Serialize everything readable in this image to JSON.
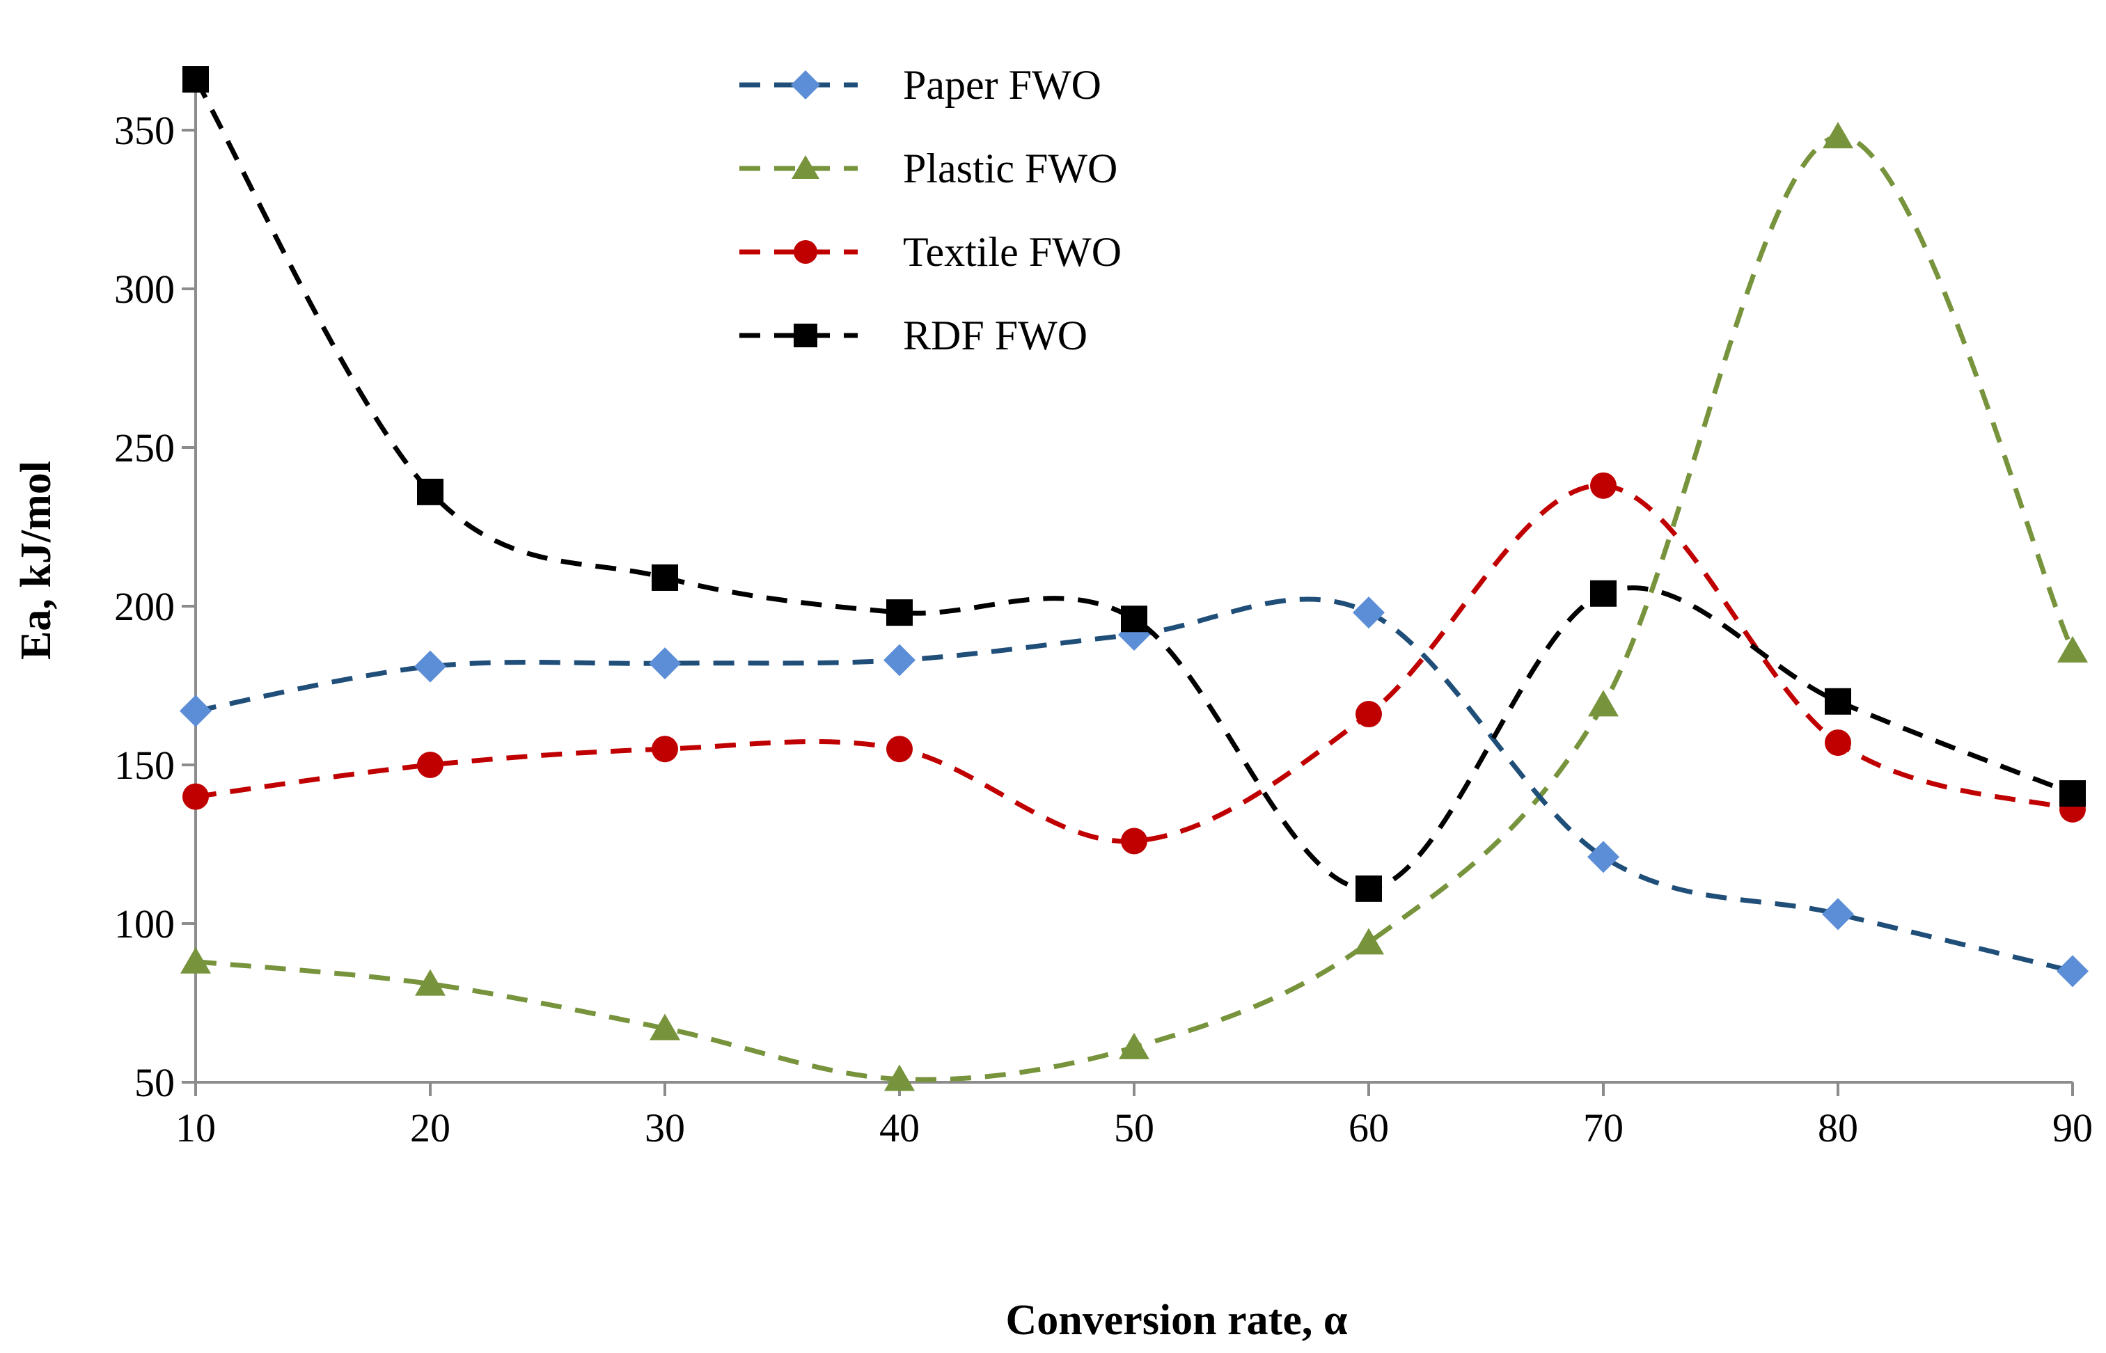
{
  "chart_data": {
    "type": "line",
    "title": "",
    "xlabel": "Conversion rate, α",
    "ylabel": "Ea, kJ/mol",
    "x": [
      10,
      20,
      30,
      40,
      50,
      60,
      70,
      80,
      90
    ],
    "xlim": [
      10,
      90
    ],
    "ylim": [
      50,
      370
    ],
    "xticks": [
      10,
      20,
      30,
      40,
      50,
      60,
      70,
      80,
      90
    ],
    "yticks": [
      50,
      100,
      150,
      200,
      250,
      300,
      350
    ],
    "grid": false,
    "legend_position": "top-center",
    "series": [
      {
        "name": "Paper FWO",
        "marker": "diamond",
        "color": "#1F4E79",
        "marker_color": "#5B8ED6",
        "values": [
          167,
          181,
          182,
          183,
          191,
          198,
          121,
          103,
          85
        ]
      },
      {
        "name": "Plastic FWO",
        "marker": "triangle",
        "color": "#77933C",
        "marker_color": "#77933C",
        "values": [
          88,
          81,
          67,
          51,
          61,
          94,
          169,
          348,
          186
        ]
      },
      {
        "name": "Textile FWO",
        "marker": "circle",
        "color": "#C00000",
        "marker_color": "#C00000",
        "values": [
          140,
          150,
          155,
          155,
          126,
          166,
          238,
          157,
          136
        ]
      },
      {
        "name": "RDF FWO",
        "marker": "square",
        "color": "#000000",
        "marker_color": "#000000",
        "values": [
          366,
          236,
          209,
          198,
          196,
          111,
          204,
          170,
          141
        ]
      }
    ]
  }
}
